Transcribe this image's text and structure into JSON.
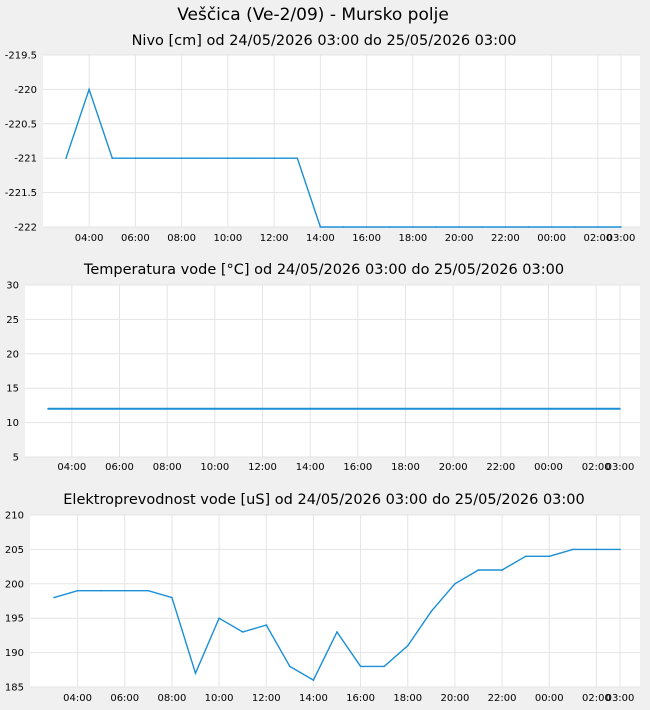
{
  "title": "Veščica (Ve-2/09) - Mursko polje",
  "colors": {
    "line": "#1a8fd6",
    "grid": "#e4e4e4",
    "plot_bg": "#ffffff",
    "page_bg": "#f0f0f0"
  },
  "chart_data": [
    {
      "type": "line",
      "title": "Nivo [cm] od 24/05/2026 03:00 do 25/05/2026 03:00",
      "xlabel": "",
      "ylabel": "",
      "x_ticks": [
        "04:00",
        "06:00",
        "08:00",
        "10:00",
        "12:00",
        "14:00",
        "16:00",
        "18:00",
        "20:00",
        "22:00",
        "00:00",
        "02:00",
        "03:00"
      ],
      "x_tick_hours": [
        1,
        3,
        5,
        7,
        9,
        11,
        13,
        15,
        17,
        19,
        21,
        23,
        24
      ],
      "y_ticks": [
        "-219.5",
        "-220",
        "-220.5",
        "-221",
        "-221.5",
        "-222"
      ],
      "ylim": [
        -222,
        -219.5
      ],
      "grid": true,
      "series": [
        {
          "x_hours": [
            0,
            1,
            2,
            3,
            4,
            5,
            6,
            7,
            8,
            9,
            10,
            11,
            12,
            13,
            14,
            15,
            16,
            17,
            18,
            19,
            20,
            21,
            22,
            23,
            24
          ],
          "values": [
            -221,
            -220,
            -221,
            -221,
            -221,
            -221,
            -221,
            -221,
            -221,
            -221,
            -221,
            -222,
            -222,
            -222,
            -222,
            -222,
            -222,
            -222,
            -222,
            -222,
            -222,
            -222,
            -222,
            -222,
            -222
          ]
        }
      ]
    },
    {
      "type": "line",
      "title": "Temperatura vode [°C] od 24/05/2026 03:00 do 25/05/2026 03:00",
      "xlabel": "",
      "ylabel": "",
      "x_ticks": [
        "04:00",
        "06:00",
        "08:00",
        "10:00",
        "12:00",
        "14:00",
        "16:00",
        "18:00",
        "20:00",
        "22:00",
        "00:00",
        "02:00",
        "03:00"
      ],
      "x_tick_hours": [
        1,
        3,
        5,
        7,
        9,
        11,
        13,
        15,
        17,
        19,
        21,
        23,
        24
      ],
      "y_ticks": [
        "30",
        "25",
        "20",
        "15",
        "10",
        "5"
      ],
      "ylim": [
        5,
        30
      ],
      "grid": true,
      "series": [
        {
          "x_hours": [
            0,
            24
          ],
          "values": [
            12,
            12
          ]
        }
      ]
    },
    {
      "type": "line",
      "title": "Elektroprevodnost vode [uS] od 24/05/2026 03:00 do 25/05/2026 03:00",
      "xlabel": "",
      "ylabel": "",
      "x_ticks": [
        "04:00",
        "06:00",
        "08:00",
        "10:00",
        "12:00",
        "14:00",
        "16:00",
        "18:00",
        "20:00",
        "22:00",
        "00:00",
        "02:00",
        "03:00"
      ],
      "x_tick_hours": [
        1,
        3,
        5,
        7,
        9,
        11,
        13,
        15,
        17,
        19,
        21,
        23,
        24
      ],
      "y_ticks": [
        "210",
        "205",
        "200",
        "195",
        "190",
        "185"
      ],
      "ylim": [
        185,
        210
      ],
      "grid": true,
      "series": [
        {
          "x_hours": [
            0,
            1,
            2,
            3,
            4,
            5,
            6,
            7,
            8,
            9,
            10,
            11,
            12,
            13,
            14,
            15,
            16,
            17,
            18,
            19,
            20,
            21,
            22,
            23,
            24
          ],
          "values": [
            198,
            199,
            199,
            199,
            199,
            198,
            187,
            195,
            193,
            194,
            188,
            186,
            193,
            188,
            188,
            191,
            196,
            200,
            202,
            202,
            204,
            204,
            205,
            205,
            205
          ]
        }
      ]
    }
  ]
}
